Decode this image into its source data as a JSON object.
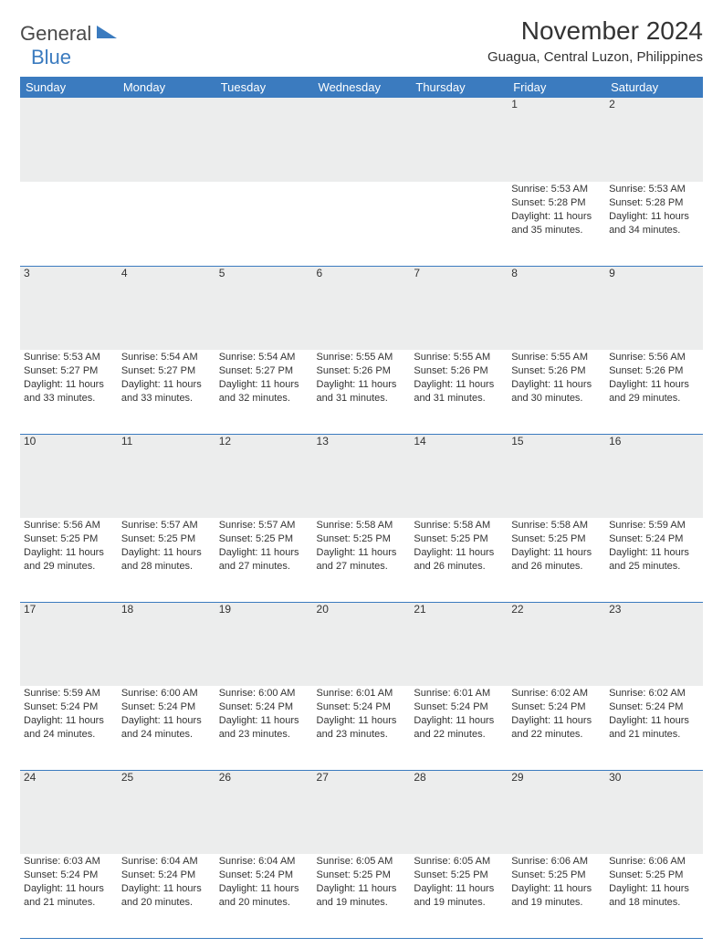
{
  "logo": {
    "line1": "General",
    "line2": "Blue"
  },
  "title": "November 2024",
  "location": "Guagua, Central Luzon, Philippines",
  "colors": {
    "header_bg": "#3b7bbf",
    "header_text": "#ffffff",
    "daynum_bg": "#eceded",
    "text": "#333333",
    "rule": "#3b7bbf",
    "page_bg": "#ffffff"
  },
  "fontsizes": {
    "title_pt": 28,
    "location_pt": 15,
    "dayhead_pt": 13,
    "daynum_pt": 12,
    "detail_pt": 11,
    "logo_pt": 22
  },
  "days": [
    "Sunday",
    "Monday",
    "Tuesday",
    "Wednesday",
    "Thursday",
    "Friday",
    "Saturday"
  ],
  "weeks": [
    [
      null,
      null,
      null,
      null,
      null,
      {
        "n": "1",
        "sr": "Sunrise: 5:53 AM",
        "ss": "Sunset: 5:28 PM",
        "dl": "Daylight: 11 hours and 35 minutes."
      },
      {
        "n": "2",
        "sr": "Sunrise: 5:53 AM",
        "ss": "Sunset: 5:28 PM",
        "dl": "Daylight: 11 hours and 34 minutes."
      }
    ],
    [
      {
        "n": "3",
        "sr": "Sunrise: 5:53 AM",
        "ss": "Sunset: 5:27 PM",
        "dl": "Daylight: 11 hours and 33 minutes."
      },
      {
        "n": "4",
        "sr": "Sunrise: 5:54 AM",
        "ss": "Sunset: 5:27 PM",
        "dl": "Daylight: 11 hours and 33 minutes."
      },
      {
        "n": "5",
        "sr": "Sunrise: 5:54 AM",
        "ss": "Sunset: 5:27 PM",
        "dl": "Daylight: 11 hours and 32 minutes."
      },
      {
        "n": "6",
        "sr": "Sunrise: 5:55 AM",
        "ss": "Sunset: 5:26 PM",
        "dl": "Daylight: 11 hours and 31 minutes."
      },
      {
        "n": "7",
        "sr": "Sunrise: 5:55 AM",
        "ss": "Sunset: 5:26 PM",
        "dl": "Daylight: 11 hours and 31 minutes."
      },
      {
        "n": "8",
        "sr": "Sunrise: 5:55 AM",
        "ss": "Sunset: 5:26 PM",
        "dl": "Daylight: 11 hours and 30 minutes."
      },
      {
        "n": "9",
        "sr": "Sunrise: 5:56 AM",
        "ss": "Sunset: 5:26 PM",
        "dl": "Daylight: 11 hours and 29 minutes."
      }
    ],
    [
      {
        "n": "10",
        "sr": "Sunrise: 5:56 AM",
        "ss": "Sunset: 5:25 PM",
        "dl": "Daylight: 11 hours and 29 minutes."
      },
      {
        "n": "11",
        "sr": "Sunrise: 5:57 AM",
        "ss": "Sunset: 5:25 PM",
        "dl": "Daylight: 11 hours and 28 minutes."
      },
      {
        "n": "12",
        "sr": "Sunrise: 5:57 AM",
        "ss": "Sunset: 5:25 PM",
        "dl": "Daylight: 11 hours and 27 minutes."
      },
      {
        "n": "13",
        "sr": "Sunrise: 5:58 AM",
        "ss": "Sunset: 5:25 PM",
        "dl": "Daylight: 11 hours and 27 minutes."
      },
      {
        "n": "14",
        "sr": "Sunrise: 5:58 AM",
        "ss": "Sunset: 5:25 PM",
        "dl": "Daylight: 11 hours and 26 minutes."
      },
      {
        "n": "15",
        "sr": "Sunrise: 5:58 AM",
        "ss": "Sunset: 5:25 PM",
        "dl": "Daylight: 11 hours and 26 minutes."
      },
      {
        "n": "16",
        "sr": "Sunrise: 5:59 AM",
        "ss": "Sunset: 5:24 PM",
        "dl": "Daylight: 11 hours and 25 minutes."
      }
    ],
    [
      {
        "n": "17",
        "sr": "Sunrise: 5:59 AM",
        "ss": "Sunset: 5:24 PM",
        "dl": "Daylight: 11 hours and 24 minutes."
      },
      {
        "n": "18",
        "sr": "Sunrise: 6:00 AM",
        "ss": "Sunset: 5:24 PM",
        "dl": "Daylight: 11 hours and 24 minutes."
      },
      {
        "n": "19",
        "sr": "Sunrise: 6:00 AM",
        "ss": "Sunset: 5:24 PM",
        "dl": "Daylight: 11 hours and 23 minutes."
      },
      {
        "n": "20",
        "sr": "Sunrise: 6:01 AM",
        "ss": "Sunset: 5:24 PM",
        "dl": "Daylight: 11 hours and 23 minutes."
      },
      {
        "n": "21",
        "sr": "Sunrise: 6:01 AM",
        "ss": "Sunset: 5:24 PM",
        "dl": "Daylight: 11 hours and 22 minutes."
      },
      {
        "n": "22",
        "sr": "Sunrise: 6:02 AM",
        "ss": "Sunset: 5:24 PM",
        "dl": "Daylight: 11 hours and 22 minutes."
      },
      {
        "n": "23",
        "sr": "Sunrise: 6:02 AM",
        "ss": "Sunset: 5:24 PM",
        "dl": "Daylight: 11 hours and 21 minutes."
      }
    ],
    [
      {
        "n": "24",
        "sr": "Sunrise: 6:03 AM",
        "ss": "Sunset: 5:24 PM",
        "dl": "Daylight: 11 hours and 21 minutes."
      },
      {
        "n": "25",
        "sr": "Sunrise: 6:04 AM",
        "ss": "Sunset: 5:24 PM",
        "dl": "Daylight: 11 hours and 20 minutes."
      },
      {
        "n": "26",
        "sr": "Sunrise: 6:04 AM",
        "ss": "Sunset: 5:24 PM",
        "dl": "Daylight: 11 hours and 20 minutes."
      },
      {
        "n": "27",
        "sr": "Sunrise: 6:05 AM",
        "ss": "Sunset: 5:25 PM",
        "dl": "Daylight: 11 hours and 19 minutes."
      },
      {
        "n": "28",
        "sr": "Sunrise: 6:05 AM",
        "ss": "Sunset: 5:25 PM",
        "dl": "Daylight: 11 hours and 19 minutes."
      },
      {
        "n": "29",
        "sr": "Sunrise: 6:06 AM",
        "ss": "Sunset: 5:25 PM",
        "dl": "Daylight: 11 hours and 19 minutes."
      },
      {
        "n": "30",
        "sr": "Sunrise: 6:06 AM",
        "ss": "Sunset: 5:25 PM",
        "dl": "Daylight: 11 hours and 18 minutes."
      }
    ]
  ]
}
